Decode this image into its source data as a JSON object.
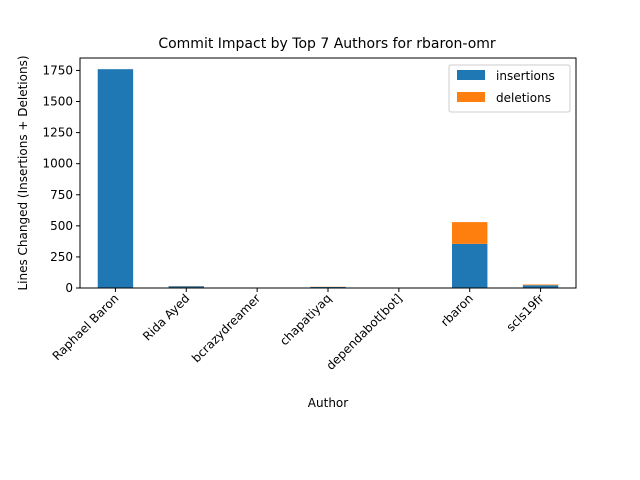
{
  "chart_data": {
    "type": "bar",
    "stacked": true,
    "title": "Commit Impact by Top 7 Authors for rbaron-omr",
    "xlabel": "Author",
    "ylabel": "Lines Changed (Insertions + Deletions)",
    "categories": [
      "Raphael Baron",
      "Rida Ayed",
      "bcrazydreamer",
      "chapatiyaq",
      "dependabot[bot]",
      "rbaron",
      "scls19fr"
    ],
    "series": [
      {
        "name": "insertions",
        "color": "#1f77b4",
        "values": [
          1760,
          14,
          1,
          8,
          1,
          355,
          22
        ]
      },
      {
        "name": "deletions",
        "color": "#ff7f0e",
        "values": [
          0,
          2,
          0,
          2,
          0,
          175,
          6
        ]
      }
    ],
    "ylim": [
      0,
      1850
    ],
    "yticks": [
      0,
      250,
      500,
      750,
      1000,
      1250,
      1500,
      1750
    ],
    "legend_position": "top-right",
    "grid": false
  }
}
